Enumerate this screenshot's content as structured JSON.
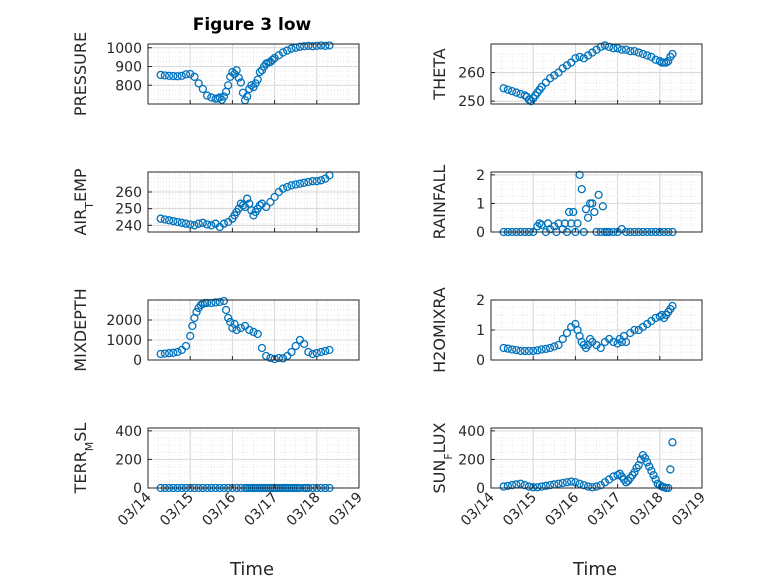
{
  "figure": {
    "title": "Figure 3 low",
    "xlabel": "Time",
    "marker_color": "#0072BD",
    "xtick_labels": [
      "03/14",
      "03/15",
      "03/16",
      "03/17",
      "03/18",
      "03/19"
    ]
  },
  "chart_data": [
    {
      "type": "scatter",
      "ylabel": "PRESSURE",
      "xlim": [
        14,
        19
      ],
      "ylim": [
        700,
        1020
      ],
      "yticks": [
        800,
        900,
        1000
      ],
      "grid": true,
      "x": [
        14.3,
        14.4,
        14.5,
        14.6,
        14.7,
        14.8,
        14.9,
        15.0,
        15.1,
        15.2,
        15.3,
        15.4,
        15.5,
        15.6,
        15.65,
        15.7,
        15.75,
        15.8,
        15.85,
        15.9,
        15.95,
        16.0,
        16.05,
        16.1,
        16.15,
        16.2,
        16.25,
        16.3,
        16.35,
        16.4,
        16.45,
        16.5,
        16.55,
        16.6,
        16.65,
        16.7,
        16.75,
        16.8,
        16.85,
        16.9,
        16.95,
        17.0,
        17.1,
        17.2,
        17.3,
        17.4,
        17.5,
        17.6,
        17.7,
        17.8,
        17.9,
        18.0,
        18.1,
        18.2,
        18.3
      ],
      "y": [
        855,
        852,
        850,
        849,
        848,
        850,
        858,
        860,
        845,
        810,
        780,
        745,
        735,
        728,
        730,
        735,
        722,
        740,
        765,
        800,
        845,
        870,
        860,
        880,
        840,
        815,
        760,
        720,
        740,
        780,
        800,
        790,
        810,
        830,
        870,
        880,
        900,
        915,
        920,
        925,
        935,
        945,
        960,
        975,
        985,
        995,
        1000,
        1005,
        1008,
        1010,
        1008,
        1010,
        1012,
        1010,
        1012
      ]
    },
    {
      "type": "scatter",
      "ylabel": "THETA",
      "xlim": [
        14,
        19
      ],
      "ylim": [
        249,
        270
      ],
      "yticks": [
        250,
        260
      ],
      "grid": true,
      "x": [
        14.3,
        14.4,
        14.5,
        14.6,
        14.7,
        14.8,
        14.85,
        14.9,
        14.95,
        15.0,
        15.05,
        15.1,
        15.15,
        15.2,
        15.3,
        15.4,
        15.5,
        15.6,
        15.7,
        15.8,
        15.9,
        16.0,
        16.1,
        16.2,
        16.3,
        16.4,
        16.5,
        16.6,
        16.7,
        16.8,
        16.9,
        17.0,
        17.1,
        17.2,
        17.3,
        17.4,
        17.5,
        17.6,
        17.7,
        17.8,
        17.9,
        18.0,
        18.05,
        18.1,
        18.15,
        18.2,
        18.25,
        18.3
      ],
      "y": [
        254.5,
        254,
        253.5,
        253,
        252.5,
        252,
        251.5,
        250.5,
        250,
        251,
        252,
        253,
        254,
        255,
        256.5,
        258,
        259,
        260,
        261.5,
        262.5,
        263.5,
        265,
        265.5,
        265,
        266,
        267,
        268,
        269,
        269.5,
        269,
        268.5,
        268.5,
        268,
        268,
        267.5,
        267.5,
        267,
        266.5,
        266,
        265.5,
        264.5,
        264,
        263.5,
        263.5,
        263.5,
        264,
        265.5,
        266.5
      ]
    },
    {
      "type": "scatter",
      "ylabel": "AIR_T_EMP",
      "xlim": [
        14,
        19
      ],
      "ylim": [
        236,
        272
      ],
      "yticks": [
        240,
        250,
        260
      ],
      "grid": true,
      "x": [
        14.3,
        14.4,
        14.5,
        14.6,
        14.7,
        14.8,
        14.9,
        15.0,
        15.1,
        15.2,
        15.3,
        15.4,
        15.5,
        15.6,
        15.7,
        15.8,
        15.9,
        16.0,
        16.05,
        16.1,
        16.15,
        16.2,
        16.25,
        16.3,
        16.35,
        16.4,
        16.45,
        16.5,
        16.55,
        16.6,
        16.65,
        16.7,
        16.8,
        16.9,
        17.0,
        17.1,
        17.2,
        17.3,
        17.4,
        17.5,
        17.6,
        17.7,
        17.8,
        17.9,
        18.0,
        18.1,
        18.2,
        18.3
      ],
      "y": [
        244,
        243.5,
        243,
        242.5,
        242,
        241.5,
        241,
        240.5,
        240,
        241,
        241.5,
        240.5,
        240,
        241,
        239,
        241,
        242,
        244,
        246,
        248,
        250,
        253,
        252,
        251,
        256,
        253,
        249,
        246,
        248,
        250,
        252,
        253,
        251,
        254,
        257,
        260,
        262,
        263,
        264,
        264.5,
        265,
        265.5,
        266,
        266.5,
        266.5,
        267,
        268,
        270
      ]
    },
    {
      "type": "scatter",
      "ylabel": "RAINFALL",
      "xlim": [
        14,
        19
      ],
      "ylim": [
        0,
        2.1
      ],
      "yticks": [
        0,
        1,
        2
      ],
      "grid": true,
      "x": [
        14.3,
        14.4,
        14.5,
        14.6,
        14.7,
        14.8,
        14.9,
        15.0,
        15.1,
        15.15,
        15.2,
        15.3,
        15.35,
        15.4,
        15.5,
        15.55,
        15.6,
        15.7,
        15.75,
        15.8,
        15.85,
        15.9,
        15.95,
        16.0,
        16.05,
        16.1,
        16.15,
        16.2,
        16.25,
        16.3,
        16.35,
        16.4,
        16.45,
        16.5,
        16.55,
        16.6,
        16.65,
        16.7,
        16.75,
        16.8,
        16.9,
        17.0,
        17.1,
        17.2,
        17.3,
        17.4,
        17.5,
        17.6,
        17.7,
        17.8,
        17.9,
        18.0,
        18.1,
        18.2,
        18.3
      ],
      "y": [
        0,
        0,
        0,
        0,
        0,
        0,
        0,
        0,
        0.2,
        0.3,
        0.25,
        0,
        0.3,
        0.1,
        0.2,
        0,
        0.3,
        0.1,
        0.3,
        0,
        0.7,
        0.3,
        0.7,
        0,
        0.3,
        2.0,
        1.5,
        0,
        0.8,
        0.5,
        1.0,
        1.0,
        0.7,
        0,
        1.3,
        0,
        0.9,
        0,
        0,
        0,
        0,
        0,
        0.1,
        0,
        0,
        0,
        0,
        0,
        0,
        0,
        0,
        0,
        0,
        0,
        0
      ]
    },
    {
      "type": "scatter",
      "ylabel": "MIXDEPTH",
      "xlim": [
        14,
        19
      ],
      "ylim": [
        0,
        3000
      ],
      "yticks": [
        0,
        1000,
        2000
      ],
      "grid": true,
      "x": [
        14.3,
        14.4,
        14.5,
        14.6,
        14.7,
        14.8,
        14.9,
        15.0,
        15.05,
        15.1,
        15.15,
        15.2,
        15.25,
        15.3,
        15.35,
        15.4,
        15.5,
        15.6,
        15.7,
        15.8,
        15.85,
        15.9,
        15.95,
        16.0,
        16.05,
        16.1,
        16.2,
        16.3,
        16.4,
        16.5,
        16.6,
        16.7,
        16.8,
        16.9,
        17.0,
        17.1,
        17.2,
        17.3,
        17.4,
        17.5,
        17.6,
        17.7,
        17.8,
        17.9,
        18.0,
        18.1,
        18.2,
        18.3
      ],
      "y": [
        300,
        320,
        340,
        360,
        400,
        500,
        700,
        1200,
        1700,
        2100,
        2400,
        2600,
        2750,
        2800,
        2850,
        2850,
        2850,
        2880,
        2900,
        2950,
        2500,
        2100,
        1900,
        1600,
        1800,
        1500,
        1600,
        1700,
        1500,
        1400,
        1300,
        600,
        200,
        100,
        50,
        100,
        80,
        200,
        400,
        700,
        1000,
        800,
        400,
        300,
        350,
        400,
        450,
        500
      ]
    },
    {
      "type": "scatter",
      "ylabel": "H2OMIXRA",
      "xlim": [
        14,
        19
      ],
      "ylim": [
        0,
        2
      ],
      "yticks": [
        0,
        1,
        2
      ],
      "grid": true,
      "x": [
        14.3,
        14.4,
        14.5,
        14.6,
        14.7,
        14.8,
        14.9,
        15.0,
        15.1,
        15.2,
        15.3,
        15.4,
        15.5,
        15.6,
        15.7,
        15.8,
        15.9,
        16.0,
        16.05,
        16.1,
        16.15,
        16.2,
        16.25,
        16.3,
        16.35,
        16.4,
        16.5,
        16.6,
        16.7,
        16.8,
        16.9,
        17.0,
        17.05,
        17.1,
        17.15,
        17.2,
        17.3,
        17.4,
        17.5,
        17.6,
        17.7,
        17.8,
        17.9,
        18.0,
        18.05,
        18.1,
        18.15,
        18.2,
        18.25,
        18.3
      ],
      "y": [
        0.4,
        0.38,
        0.35,
        0.33,
        0.3,
        0.3,
        0.3,
        0.3,
        0.32,
        0.35,
        0.37,
        0.4,
        0.45,
        0.5,
        0.7,
        0.9,
        1.1,
        1.2,
        1.0,
        0.8,
        0.6,
        0.5,
        0.4,
        0.5,
        0.7,
        0.6,
        0.5,
        0.4,
        0.6,
        0.7,
        0.6,
        0.55,
        0.7,
        0.6,
        0.8,
        0.6,
        0.9,
        1.0,
        1.0,
        1.1,
        1.2,
        1.3,
        1.4,
        1.45,
        1.5,
        1.4,
        1.5,
        1.6,
        1.7,
        1.8
      ]
    },
    {
      "type": "scatter",
      "ylabel": "TERR_M_SL",
      "xlim": [
        14,
        19
      ],
      "ylim": [
        0,
        420
      ],
      "yticks": [
        0,
        200,
        400
      ],
      "grid": true,
      "x": [
        14.3,
        14.4,
        14.5,
        14.6,
        14.7,
        14.8,
        14.9,
        15.0,
        15.1,
        15.2,
        15.3,
        15.4,
        15.5,
        15.6,
        15.7,
        15.8,
        15.9,
        16.0,
        16.1,
        16.2,
        16.3,
        16.35,
        16.4,
        16.45,
        16.5,
        16.55,
        16.6,
        16.65,
        16.7,
        16.75,
        16.8,
        16.85,
        16.9,
        16.95,
        17.0,
        17.05,
        17.1,
        17.15,
        17.2,
        17.25,
        17.3,
        17.35,
        17.4,
        17.45,
        17.5,
        17.55,
        17.6,
        17.7,
        17.75,
        17.8,
        17.9,
        18.0,
        18.1,
        18.2,
        18.3
      ],
      "y": [
        0,
        0,
        0,
        0,
        0,
        0,
        0,
        0,
        0,
        0,
        0,
        0,
        0,
        0,
        0,
        0,
        0,
        0,
        0,
        0,
        0,
        0,
        0,
        0,
        0,
        0,
        0,
        0,
        0,
        0,
        0,
        0,
        0,
        0,
        0,
        0,
        0,
        0,
        0,
        0,
        0,
        0,
        0,
        0,
        0,
        0,
        0,
        0,
        0,
        0,
        0,
        0,
        0,
        0,
        0
      ]
    },
    {
      "type": "scatter",
      "ylabel": "SUN_F_LUX",
      "xlim": [
        14,
        19
      ],
      "ylim": [
        0,
        420
      ],
      "yticks": [
        0,
        200,
        400
      ],
      "grid": true,
      "x": [
        14.3,
        14.4,
        14.5,
        14.6,
        14.7,
        14.8,
        14.9,
        15.0,
        15.1,
        15.2,
        15.3,
        15.4,
        15.5,
        15.6,
        15.7,
        15.8,
        15.9,
        16.0,
        16.1,
        16.2,
        16.3,
        16.4,
        16.5,
        16.6,
        16.7,
        16.8,
        16.9,
        17.0,
        17.05,
        17.1,
        17.15,
        17.2,
        17.25,
        17.3,
        17.35,
        17.4,
        17.45,
        17.5,
        17.55,
        17.6,
        17.65,
        17.7,
        17.75,
        17.8,
        17.85,
        17.9,
        17.95,
        18.0,
        18.05,
        18.1,
        18.15,
        18.2,
        18.25,
        18.3
      ],
      "y": [
        10,
        15,
        20,
        25,
        30,
        20,
        10,
        5,
        5,
        10,
        15,
        20,
        25,
        30,
        35,
        40,
        45,
        40,
        30,
        20,
        10,
        5,
        10,
        20,
        40,
        60,
        80,
        90,
        100,
        80,
        60,
        40,
        50,
        70,
        90,
        110,
        140,
        160,
        200,
        230,
        210,
        180,
        150,
        120,
        90,
        60,
        30,
        20,
        10,
        5,
        0,
        0,
        130,
        320
      ]
    }
  ]
}
